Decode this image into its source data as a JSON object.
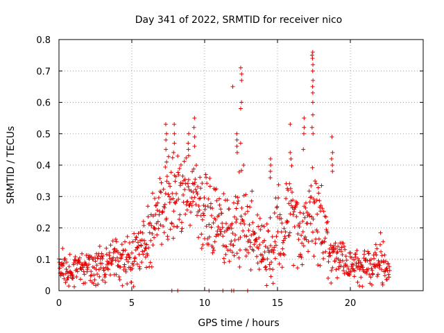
{
  "chart_data": {
    "type": "scatter",
    "title": "Day 341 of 2022, SRMTID for receiver nico",
    "xlabel": "GPS time / hours",
    "ylabel": "SRMTID / TECUs",
    "xlim": [
      0,
      25
    ],
    "ylim": [
      0,
      0.8
    ],
    "x_ticks": [
      0,
      5,
      10,
      15,
      20
    ],
    "x_tick_labels": [
      "0",
      "5",
      "10",
      "15",
      "20"
    ],
    "y_ticks": [
      0,
      0.1,
      0.2,
      0.3,
      0.4,
      0.5,
      0.6,
      0.7,
      0.8
    ],
    "y_tick_labels": [
      "0",
      "0.1",
      "0.2",
      "0.3",
      "0.4",
      "0.5",
      "0.6",
      "0.7",
      "0.8"
    ],
    "grid": true,
    "legend": "none",
    "marker": "+",
    "color": "#e00000",
    "envelope": {
      "hours": [
        0.0,
        1.0,
        2.0,
        3.0,
        4.0,
        5.0,
        5.5,
        6.0,
        6.5,
        7.0,
        7.5,
        8.0,
        8.5,
        9.0,
        9.5,
        10.0,
        10.5,
        11.0,
        11.5,
        12.0,
        12.5,
        13.0,
        13.5,
        14.0,
        14.5,
        15.0,
        15.5,
        16.0,
        16.5,
        17.0,
        17.5,
        18.0,
        18.5,
        19.0,
        19.5,
        20.0,
        20.5,
        21.0,
        21.5,
        22.0,
        22.7
      ],
      "median": [
        0.08,
        0.07,
        0.08,
        0.08,
        0.09,
        0.1,
        0.12,
        0.15,
        0.2,
        0.26,
        0.3,
        0.31,
        0.3,
        0.31,
        0.3,
        0.27,
        0.22,
        0.2,
        0.2,
        0.21,
        0.24,
        0.2,
        0.16,
        0.13,
        0.14,
        0.18,
        0.17,
        0.27,
        0.17,
        0.16,
        0.28,
        0.2,
        0.12,
        0.11,
        0.1,
        0.08,
        0.08,
        0.09,
        0.08,
        0.09,
        0.07
      ],
      "spread": [
        0.04,
        0.04,
        0.04,
        0.05,
        0.05,
        0.06,
        0.06,
        0.07,
        0.08,
        0.09,
        0.09,
        0.09,
        0.09,
        0.09,
        0.09,
        0.09,
        0.08,
        0.08,
        0.08,
        0.09,
        0.1,
        0.09,
        0.08,
        0.07,
        0.08,
        0.1,
        0.09,
        0.1,
        0.09,
        0.08,
        0.12,
        0.1,
        0.07,
        0.05,
        0.04,
        0.04,
        0.04,
        0.04,
        0.04,
        0.05,
        0.04
      ]
    },
    "sampling": {
      "x_start": 0.0,
      "x_end": 22.7,
      "step_hours": 0.025,
      "seed": 341
    },
    "spikes": [
      {
        "x": 7.35,
        "values": [
          0.53,
          0.5,
          0.48,
          0.45,
          0.41
        ]
      },
      {
        "x": 7.9,
        "values": [
          0.53,
          0.5,
          0.47,
          0.44
        ]
      },
      {
        "x": 8.9,
        "values": [
          0.5,
          0.47,
          0.45,
          0.43
        ]
      },
      {
        "x": 9.3,
        "values": [
          0.55,
          0.52,
          0.49,
          0.46
        ]
      },
      {
        "x": 11.9,
        "values": [
          0.65
        ]
      },
      {
        "x": 12.2,
        "values": [
          0.5,
          0.48,
          0.46,
          0.44
        ]
      },
      {
        "x": 12.5,
        "values": [
          0.71,
          0.69,
          0.67,
          0.6,
          0.58,
          0.47
        ]
      },
      {
        "x": 14.5,
        "values": [
          0.42,
          0.4,
          0.38,
          0.36
        ]
      },
      {
        "x": 15.9,
        "values": [
          0.53,
          0.44,
          0.42
        ]
      },
      {
        "x": 16.8,
        "values": [
          0.55,
          0.52,
          0.5,
          0.45
        ]
      },
      {
        "x": 17.4,
        "values": [
          0.76,
          0.75,
          0.74,
          0.72,
          0.7,
          0.67,
          0.65,
          0.63,
          0.6,
          0.56,
          0.52,
          0.5
        ]
      },
      {
        "x": 18.75,
        "values": [
          0.49,
          0.44,
          0.42,
          0.4,
          0.38
        ]
      }
    ],
    "zero_points": [
      7.75,
      8.15,
      10.3,
      11.25,
      11.85,
      12.0,
      12.95
    ]
  }
}
